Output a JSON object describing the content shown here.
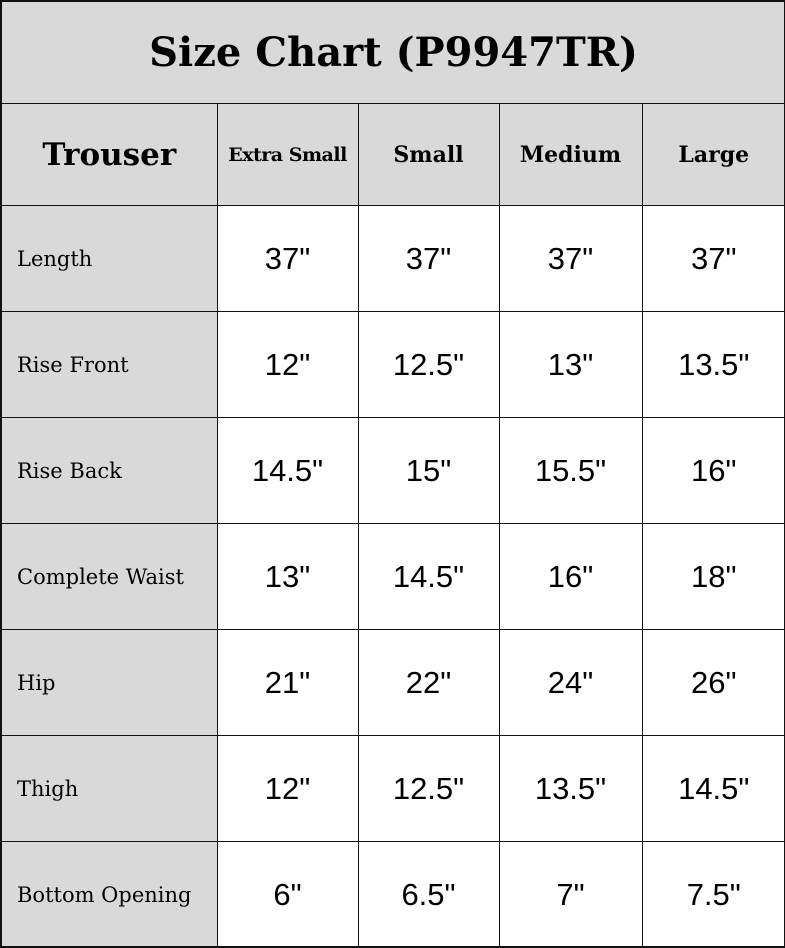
{
  "title": "Size Chart (P9947TR)",
  "header": {
    "corner": "Trouser",
    "sizes": [
      "Extra Small",
      "Small",
      "Medium",
      "Large"
    ]
  },
  "rows": [
    {
      "label": "Length",
      "values": [
        "37\"",
        "37\"",
        "37\"",
        "37\""
      ]
    },
    {
      "label": "Rise Front",
      "values": [
        "12\"",
        "12.5\"",
        "13\"",
        "13.5\""
      ]
    },
    {
      "label": "Rise Back",
      "values": [
        "14.5\"",
        "15\"",
        "15.5\"",
        "16\""
      ]
    },
    {
      "label": "Complete Waist",
      "values": [
        "13\"",
        "14.5\"",
        "16\"",
        "18\""
      ]
    },
    {
      "label": "Hip",
      "values": [
        "21\"",
        "22\"",
        "24\"",
        "26\""
      ]
    },
    {
      "label": "Thigh",
      "values": [
        "12\"",
        "12.5\"",
        "13.5\"",
        "14.5\""
      ]
    },
    {
      "label": "Bottom Opening",
      "values": [
        "6\"",
        "6.5\"",
        "7\"",
        "7.5\""
      ]
    }
  ],
  "colors": {
    "header_bg": "#d9d9d9",
    "border": "#111111"
  }
}
